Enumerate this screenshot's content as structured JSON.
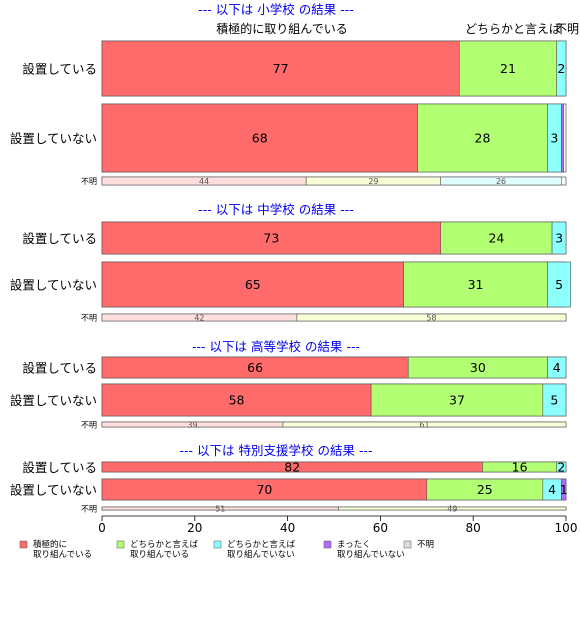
{
  "chart_data": {
    "type": "bar",
    "orientation": "horizontal",
    "stacked": true,
    "xlim": [
      0,
      100
    ],
    "x_ticks": [
      "0",
      "20",
      "40",
      "60",
      "80",
      "100"
    ],
    "category_colors": [
      "#ff6b6b",
      "#b3ff73",
      "#8cffff",
      "#b36bff",
      "#dcdcdc"
    ],
    "top_labels": [
      "積極的に取り組んでいる",
      "どちらかと言えば",
      "不明"
    ],
    "legend": {
      "position": "bottom",
      "items": [
        {
          "line1": "積極的に",
          "line2": "取り組んでいる"
        },
        {
          "line1": "どちらかと言えば",
          "line2": "取り組んでいる"
        },
        {
          "line1": "どちらかと言えば",
          "line2": "取り組んでいない"
        },
        {
          "line1": "まったく",
          "line2": "取り組んでいない"
        },
        {
          "line1": "不明",
          "line2": ""
        }
      ]
    },
    "panels": [
      {
        "title": "--- 以下は 小学校 の結果 ---",
        "rows": [
          {
            "label": "設置している",
            "values": [
              77,
              21,
              2,
              0,
              0
            ],
            "labels": [
              "77",
              "21",
              "2",
              "",
              ""
            ]
          },
          {
            "label": "設置していない",
            "values": [
              68,
              28,
              3,
              0.5,
              0
            ],
            "labels": [
              "68",
              "28",
              "3",
              "",
              ""
            ]
          },
          {
            "label": "不明",
            "values": [
              44,
              29,
              26,
              0,
              0
            ],
            "labels": [
              "44",
              "29",
              "26",
              "",
              ""
            ]
          }
        ]
      },
      {
        "title": "--- 以下は 中学校 の結果 ---",
        "rows": [
          {
            "label": "設置している",
            "values": [
              73,
              24,
              3,
              0,
              0
            ],
            "labels": [
              "73",
              "24",
              "3",
              "",
              ""
            ]
          },
          {
            "label": "設置していない",
            "values": [
              65,
              31,
              5,
              0,
              0
            ],
            "labels": [
              "65",
              "31",
              "5",
              "",
              ""
            ]
          },
          {
            "label": "不明",
            "values": [
              42,
              58,
              0,
              0,
              0
            ],
            "labels": [
              "42",
              "58",
              "",
              "",
              ""
            ]
          }
        ]
      },
      {
        "title": "--- 以下は 高等学校 の結果 ---",
        "rows": [
          {
            "label": "設置している",
            "values": [
              66,
              30,
              4,
              0,
              0
            ],
            "labels": [
              "66",
              "30",
              "4",
              "",
              ""
            ]
          },
          {
            "label": "設置していない",
            "values": [
              58,
              37,
              5,
              0,
              0
            ],
            "labels": [
              "58",
              "37",
              "5",
              "",
              ""
            ]
          },
          {
            "label": "不明",
            "values": [
              39,
              61,
              0,
              0,
              0
            ],
            "labels": [
              "39",
              "61",
              "",
              "",
              ""
            ]
          }
        ]
      },
      {
        "title": "--- 以下は 特別支援学校 の結果 ---",
        "rows": [
          {
            "label": "設置している",
            "values": [
              82,
              16,
              2,
              0,
              0
            ],
            "labels": [
              "82",
              "16",
              "2",
              "",
              ""
            ]
          },
          {
            "label": "設置していない",
            "values": [
              70,
              25,
              4,
              1,
              0
            ],
            "labels": [
              "70",
              "25",
              "4",
              "1",
              ""
            ]
          },
          {
            "label": "不明",
            "values": [
              51,
              49,
              0,
              0,
              0
            ],
            "labels": [
              "51",
              "49",
              "",
              "",
              ""
            ]
          }
        ]
      }
    ]
  }
}
